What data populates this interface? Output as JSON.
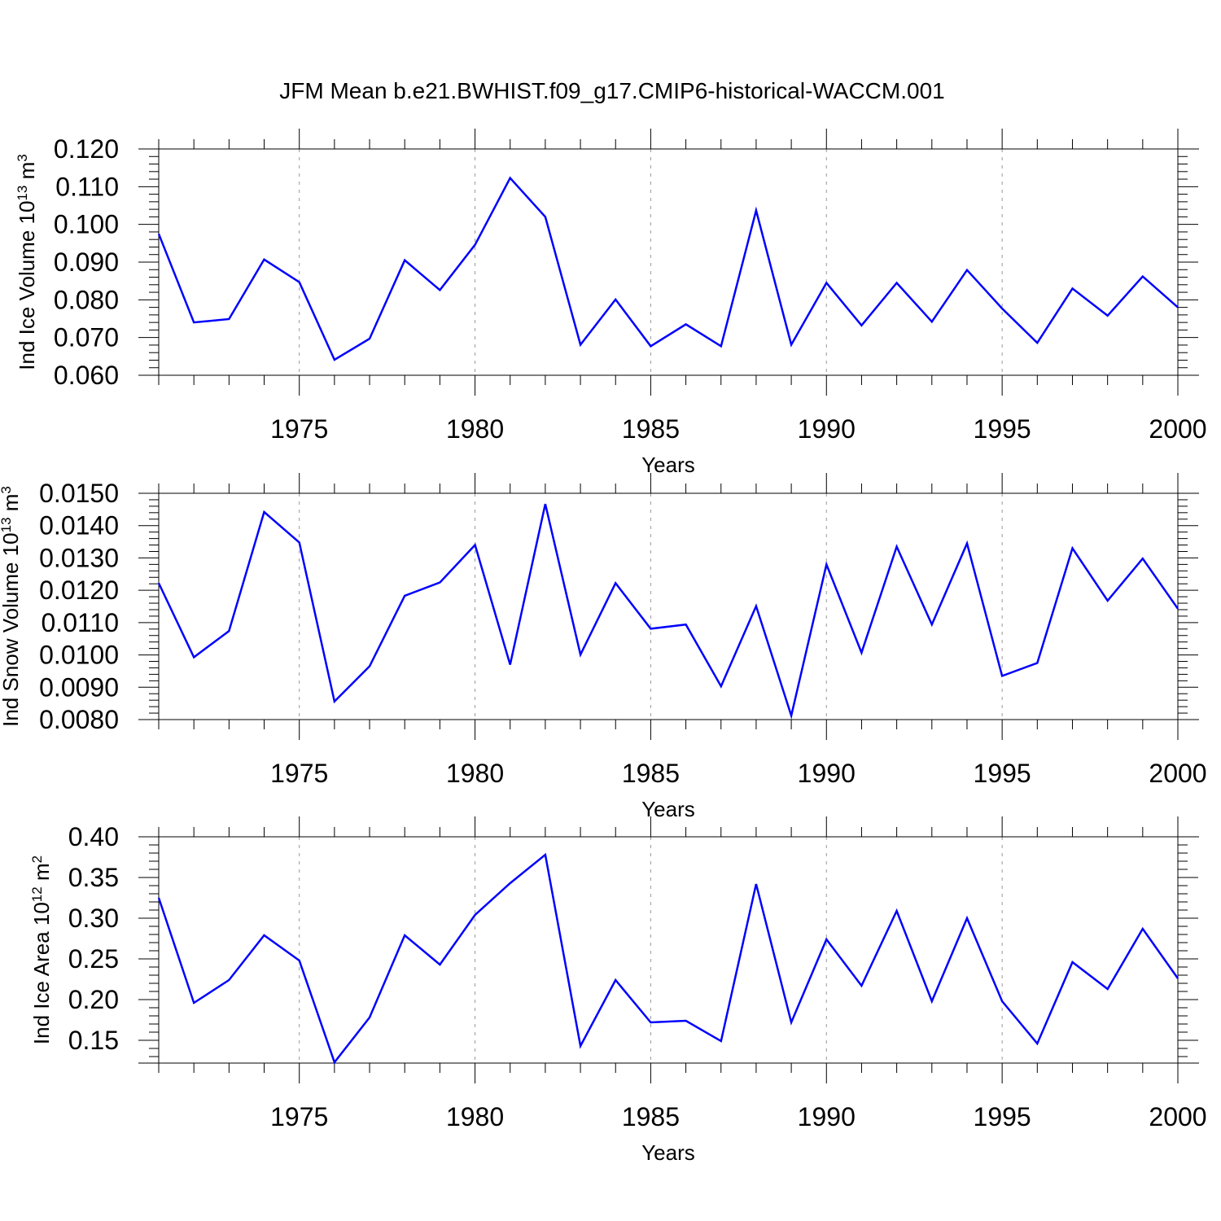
{
  "title": "JFM Mean b.e21.BWHIST.f09_g17.CMIP6-historical-WACCM.001",
  "colors": {
    "line": "#0000ff",
    "axis": "#000000",
    "grid": "#999999"
  },
  "chart_data": [
    {
      "type": "line",
      "ylabel": "Ind Ice Volume 10",
      "ylabel_exp": "13",
      "ylabel_unit": " m",
      "ylabel_unit_exp": "3",
      "xlabel": "Years",
      "xlim": [
        1971,
        2000
      ],
      "ylim": [
        0.06,
        0.12
      ],
      "yticks": [
        "0.060",
        "0.070",
        "0.080",
        "0.090",
        "0.100",
        "0.110",
        "0.120"
      ],
      "xticks": [
        "1975",
        "1980",
        "1985",
        "1990",
        "1995",
        "2000"
      ],
      "grid": "vertical dashed at major x ticks",
      "x": [
        1971,
        1972,
        1973,
        1974,
        1975,
        1976,
        1977,
        1978,
        1979,
        1980,
        1981,
        1982,
        1983,
        1984,
        1985,
        1986,
        1987,
        1988,
        1989,
        1990,
        1991,
        1992,
        1993,
        1994,
        1995,
        1996,
        1997,
        1998,
        1999,
        2000
      ],
      "values": [
        0.0975,
        0.074,
        0.0749,
        0.0907,
        0.0847,
        0.0641,
        0.0697,
        0.0905,
        0.0826,
        0.0946,
        0.1123,
        0.102,
        0.0681,
        0.0801,
        0.0677,
        0.0735,
        0.0677,
        0.1037,
        0.0681,
        0.0845,
        0.0732,
        0.0845,
        0.0742,
        0.0879,
        0.0777,
        0.0686,
        0.083,
        0.0758,
        0.0862,
        0.078
      ]
    },
    {
      "type": "line",
      "ylabel": "Ind Snow Volume 10",
      "ylabel_exp": "13",
      "ylabel_unit": " m",
      "ylabel_unit_exp": "3",
      "xlabel": "Years",
      "xlim": [
        1971,
        2000
      ],
      "ylim": [
        0.008,
        0.015
      ],
      "yticks": [
        "0.0080",
        "0.0090",
        "0.0100",
        "0.0110",
        "0.0120",
        "0.0130",
        "0.0140",
        "0.0150"
      ],
      "xticks": [
        "1975",
        "1980",
        "1985",
        "1990",
        "1995",
        "2000"
      ],
      "grid": "vertical dashed at major x ticks",
      "x": [
        1971,
        1972,
        1973,
        1974,
        1975,
        1976,
        1977,
        1978,
        1979,
        1980,
        1981,
        1982,
        1983,
        1984,
        1985,
        1986,
        1987,
        1988,
        1989,
        1990,
        1991,
        1992,
        1993,
        1994,
        1995,
        1996,
        1997,
        1998,
        1999,
        2000
      ],
      "values": [
        0.01222,
        0.00993,
        0.01074,
        0.01442,
        0.01348,
        0.00856,
        0.00965,
        0.01183,
        0.01224,
        0.0134,
        0.0097,
        0.01467,
        0.01001,
        0.01222,
        0.01081,
        0.01094,
        0.00903,
        0.01151,
        0.00812,
        0.0128,
        0.01007,
        0.01335,
        0.01094,
        0.01345,
        0.00935,
        0.00975,
        0.0133,
        0.01168,
        0.01298,
        0.01143
      ]
    },
    {
      "type": "line",
      "ylabel": "Ind Ice Area 10",
      "ylabel_exp": "12",
      "ylabel_unit": " m",
      "ylabel_unit_exp": "2",
      "xlabel": "Years",
      "xlim": [
        1971,
        2000
      ],
      "ylim": [
        0.122,
        0.4
      ],
      "yticks": [
        "0.15",
        "0.20",
        "0.25",
        "0.30",
        "0.35",
        "0.40"
      ],
      "xticks": [
        "1975",
        "1980",
        "1985",
        "1990",
        "1995",
        "2000"
      ],
      "grid": "vertical dashed at major x ticks",
      "x": [
        1971,
        1972,
        1973,
        1974,
        1975,
        1976,
        1977,
        1978,
        1979,
        1980,
        1981,
        1982,
        1983,
        1984,
        1985,
        1986,
        1987,
        1988,
        1989,
        1990,
        1991,
        1992,
        1993,
        1994,
        1995,
        1996,
        1997,
        1998,
        1999,
        2000
      ],
      "values": [
        0.325,
        0.196,
        0.224,
        0.279,
        0.248,
        0.123,
        0.178,
        0.279,
        0.243,
        0.304,
        0.343,
        0.378,
        0.143,
        0.224,
        0.172,
        0.174,
        0.149,
        0.342,
        0.172,
        0.274,
        0.217,
        0.309,
        0.198,
        0.3,
        0.198,
        0.146,
        0.246,
        0.213,
        0.287,
        0.226
      ]
    }
  ]
}
